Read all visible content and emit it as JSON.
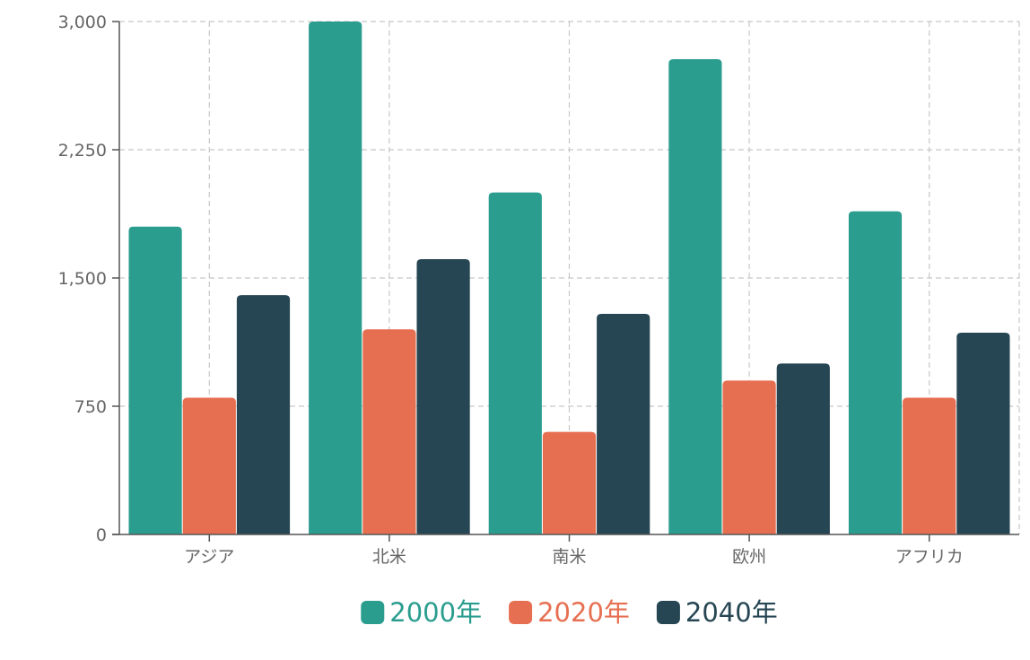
{
  "chart_data": {
    "type": "bar",
    "categories": [
      "アジア",
      "北米",
      "南米",
      "欧州",
      "アフリカ"
    ],
    "series": [
      {
        "name": "2000年",
        "color": "#2a9d8f",
        "values": [
          1800,
          3000,
          2000,
          2780,
          1890
        ]
      },
      {
        "name": "2020年",
        "color": "#e76f51",
        "values": [
          800,
          1200,
          600,
          900,
          800
        ]
      },
      {
        "name": "2040年",
        "color": "#264653",
        "values": [
          1400,
          1610,
          1290,
          1000,
          1180
        ]
      }
    ],
    "ylim": [
      0,
      3000
    ],
    "y_ticks": [
      0,
      750,
      1500,
      2250,
      3000
    ],
    "y_tick_labels": [
      "0",
      "750",
      "1,500",
      "2,250",
      "3,000"
    ],
    "grid": true,
    "legend_position": "bottom-center"
  }
}
